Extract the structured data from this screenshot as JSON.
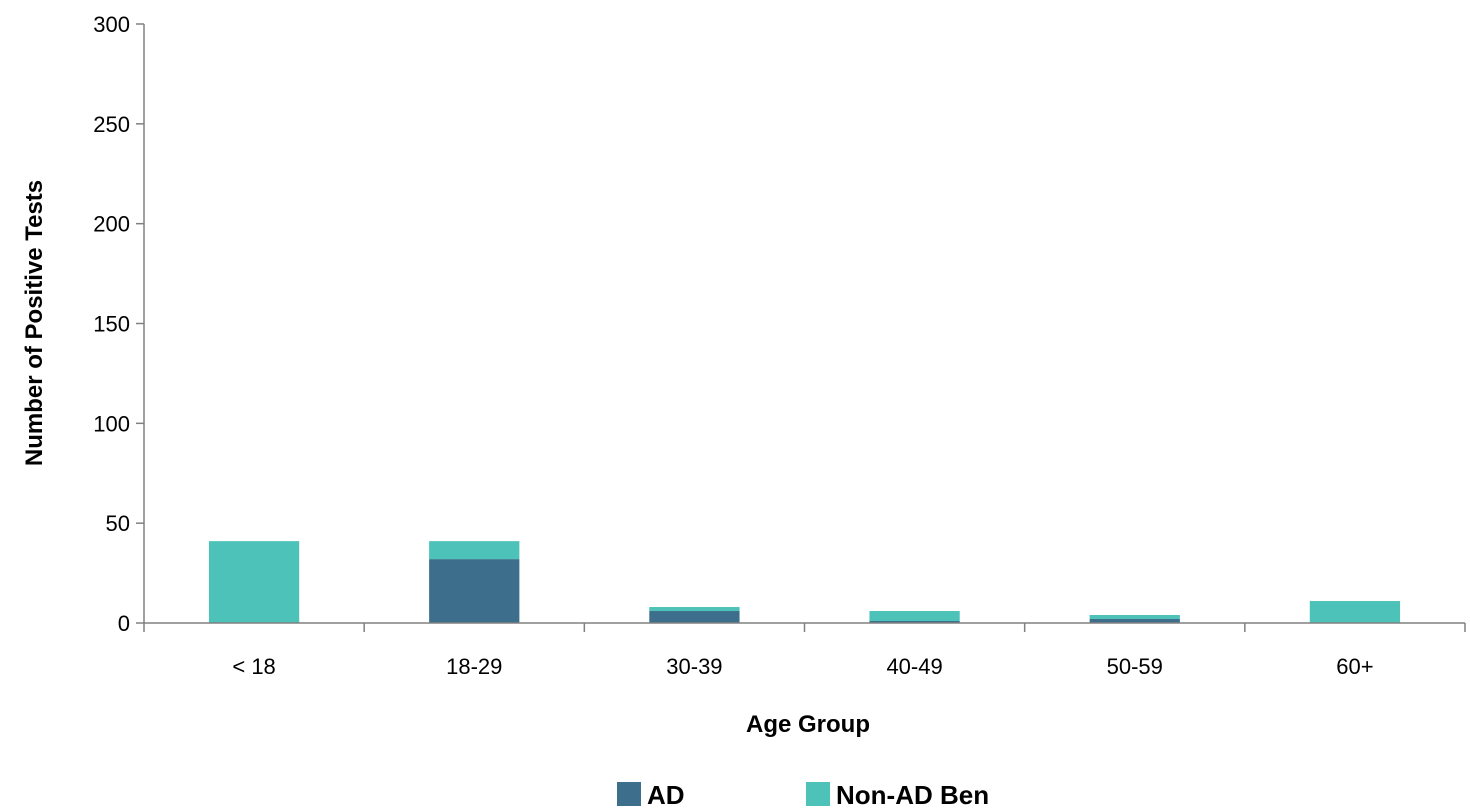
{
  "chart_data": {
    "type": "bar",
    "stacked": true,
    "categories": [
      "< 18",
      "18-29",
      "30-39",
      "40-49",
      "50-59",
      "60+"
    ],
    "series": [
      {
        "name": "AD",
        "color": "#3d6f8c",
        "values": [
          0,
          32,
          6,
          1,
          2,
          0
        ]
      },
      {
        "name": "Non-AD Ben",
        "color": "#4cc2b8",
        "values": [
          41,
          9,
          2,
          5,
          2,
          11
        ]
      }
    ],
    "title": "",
    "xlabel": "Age Group",
    "ylabel": "Number of Positive Tests",
    "ylim": [
      0,
      300
    ],
    "yticks": [
      0,
      50,
      100,
      150,
      200,
      250,
      300
    ],
    "grid": false,
    "legend_position": "bottom"
  }
}
